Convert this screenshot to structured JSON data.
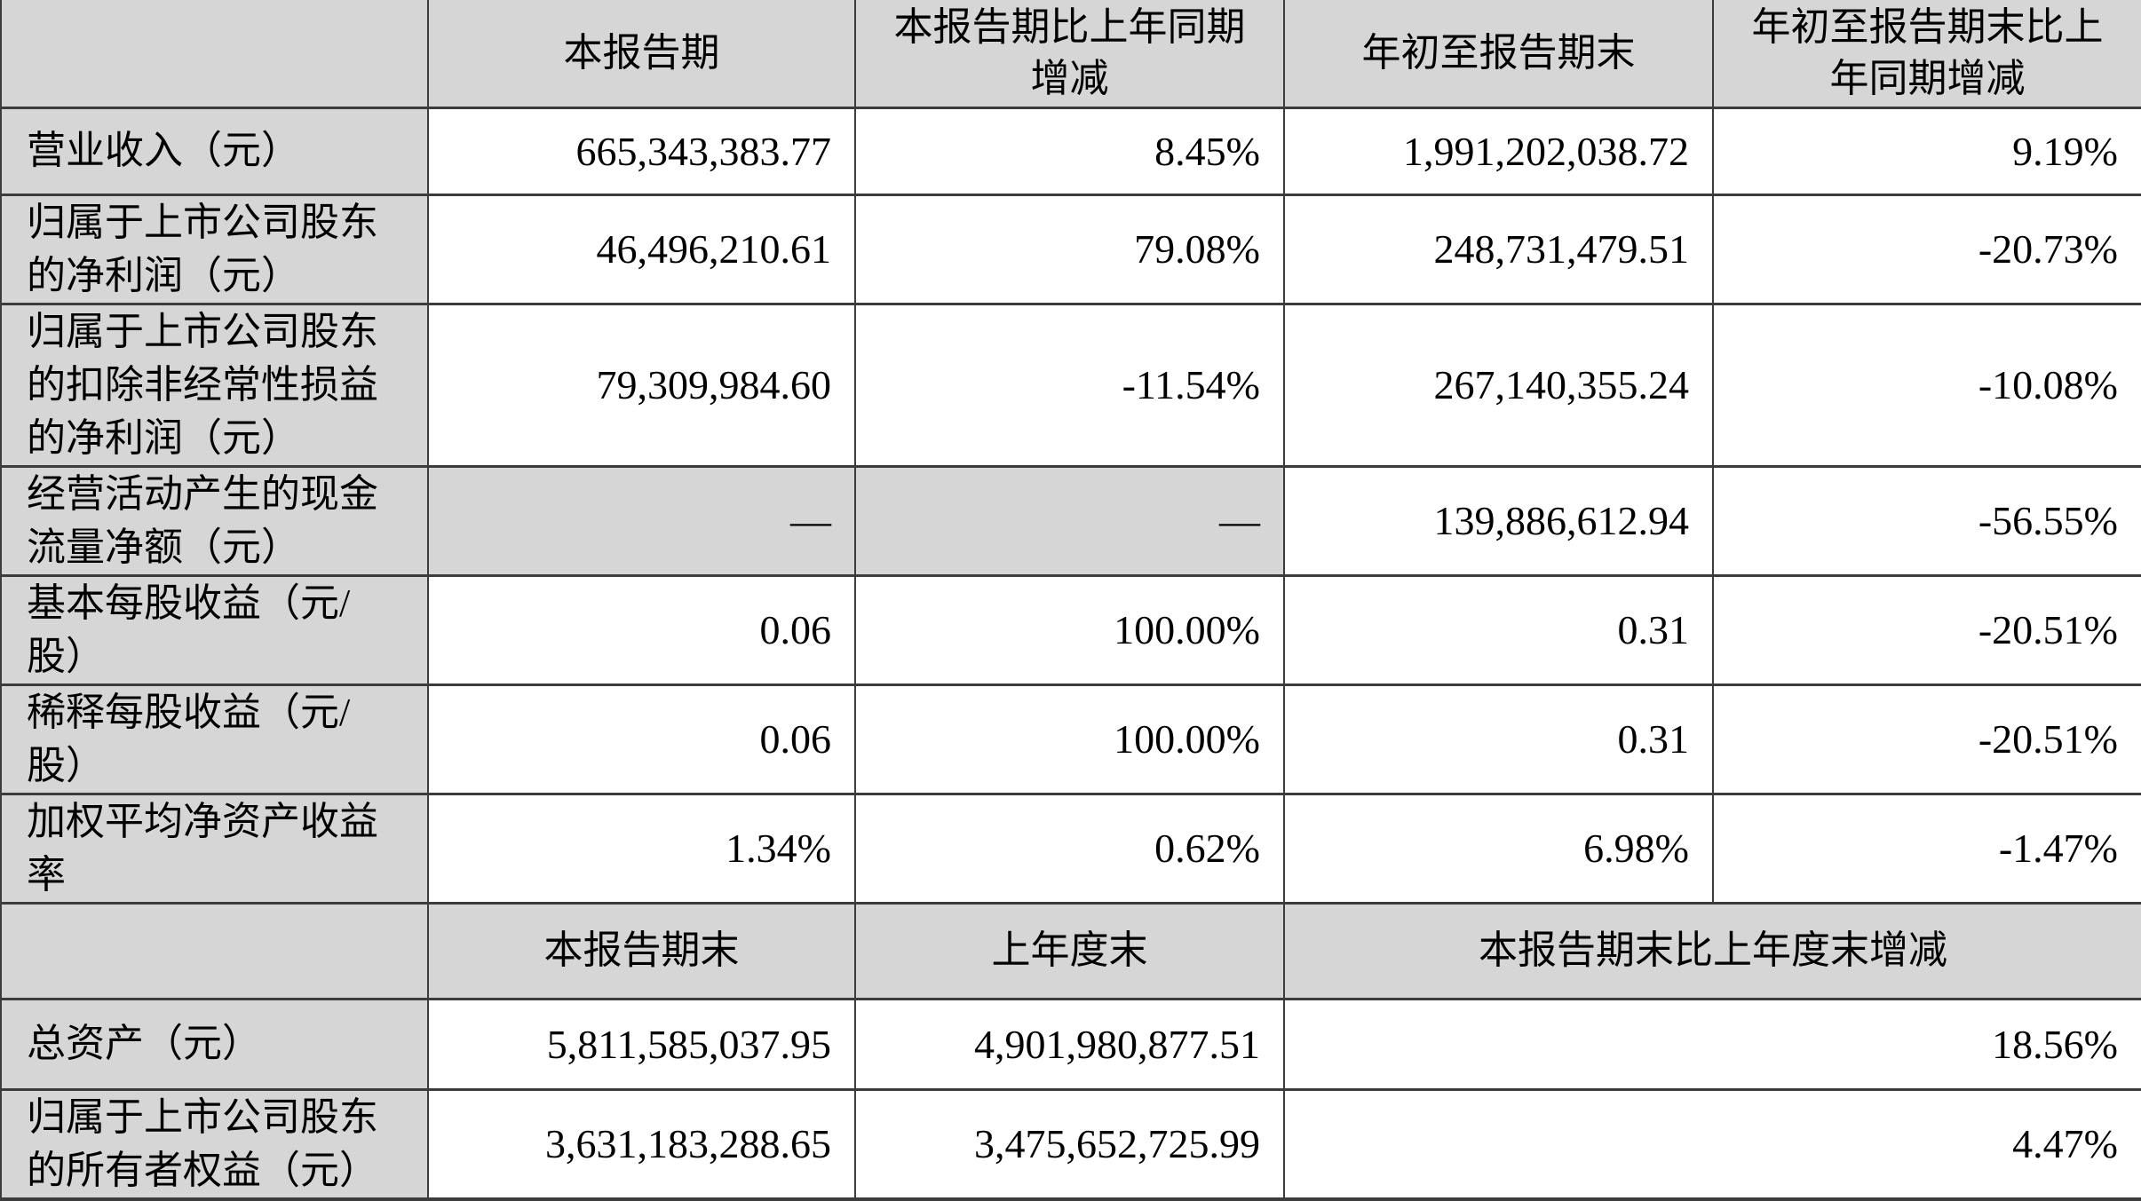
{
  "colors": {
    "header_bg": "#d6d6d6",
    "row_bg": "#ffffff",
    "border": "#3c3c3c",
    "text": "#000000"
  },
  "table": {
    "section1": {
      "column_headers": [
        "",
        "本报告期",
        "本报告期比上年同期\n增减",
        "年初至报告期末",
        "年初至报告期末比上\n年同期增减"
      ],
      "rows": [
        {
          "label": "营业收入（元）",
          "values": [
            "665,343,383.77",
            "8.45%",
            "1,991,202,038.72",
            "9.19%"
          ]
        },
        {
          "label": "归属于上市公司股东\n的净利润（元）",
          "values": [
            "46,496,210.61",
            "79.08%",
            "248,731,479.51",
            "-20.73%"
          ]
        },
        {
          "label": "归属于上市公司股东\n的扣除非经常性损益\n的净利润（元）",
          "values": [
            "79,309,984.60",
            "-11.54%",
            "267,140,355.24",
            "-10.08%"
          ]
        },
        {
          "label": "经营活动产生的现金\n流量净额（元）",
          "values": [
            "—",
            "—",
            "139,886,612.94",
            "-56.55%"
          ],
          "shaded_value_cols": [
            0,
            1
          ]
        },
        {
          "label": "基本每股收益（元/\n股）",
          "values": [
            "0.06",
            "100.00%",
            "0.31",
            "-20.51%"
          ]
        },
        {
          "label": "稀释每股收益（元/\n股）",
          "values": [
            "0.06",
            "100.00%",
            "0.31",
            "-20.51%"
          ]
        },
        {
          "label": "加权平均净资产收益\n率",
          "values": [
            "1.34%",
            "0.62%",
            "6.98%",
            "-1.47%"
          ]
        }
      ]
    },
    "section2": {
      "column_headers": [
        "",
        "本报告期末",
        "上年度末",
        "本报告期末比上年度末增减"
      ],
      "rows": [
        {
          "label": "总资产（元）",
          "values": [
            "5,811,585,037.95",
            "4,901,980,877.51",
            "18.56%"
          ]
        },
        {
          "label": "归属于上市公司股东\n的所有者权益（元）",
          "values": [
            "3,631,183,288.65",
            "3,475,652,725.99",
            "4.47%"
          ]
        }
      ]
    }
  }
}
